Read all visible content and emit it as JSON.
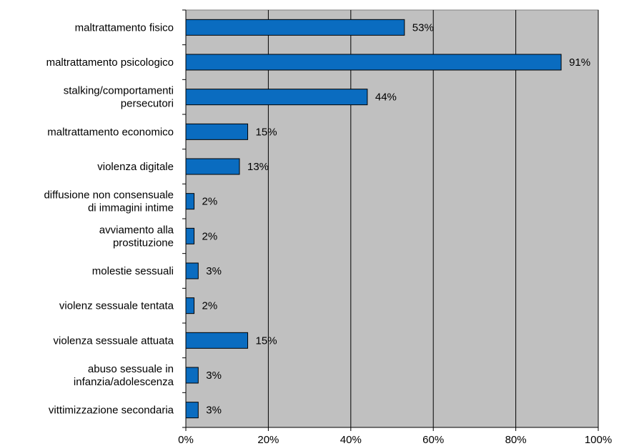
{
  "chart_data": {
    "type": "bar",
    "orientation": "horizontal",
    "categories": [
      [
        "maltrattamento fisico"
      ],
      [
        "maltrattamento psicologico"
      ],
      [
        "stalking/comportamenti",
        "persecutori"
      ],
      [
        "maltrattamento economico"
      ],
      [
        "violenza digitale"
      ],
      [
        "diffusione non consensuale",
        "di immagini intime"
      ],
      [
        "avviamento alla",
        "prostituzione"
      ],
      [
        "molestie sessuali"
      ],
      [
        "violenz sessuale tentata"
      ],
      [
        "violenza sessuale attuata"
      ],
      [
        "abuso sessuale in",
        "infanzia/adolescenza"
      ],
      [
        "vittimizzazione secondaria"
      ]
    ],
    "values": [
      53,
      91,
      44,
      15,
      13,
      2,
      2,
      3,
      2,
      15,
      3,
      3
    ],
    "data_labels": [
      "53%",
      "91%",
      "44%",
      "15%",
      "13%",
      "2%",
      "2%",
      "3%",
      "2%",
      "15%",
      "3%",
      "3%"
    ],
    "xlim": [
      0,
      100
    ],
    "x_ticks": [
      0,
      20,
      40,
      60,
      80,
      100
    ],
    "x_tick_labels": [
      "0%",
      "20%",
      "40%",
      "60%",
      "80%",
      "100%"
    ],
    "title": "",
    "xlabel": "",
    "ylabel": "",
    "grid": true,
    "legend": false,
    "colors": {
      "bar_fill": "#0a6cc0",
      "bar_stroke": "#000000",
      "plot_background": "#c0c0c0",
      "gridline": "#000000"
    }
  }
}
